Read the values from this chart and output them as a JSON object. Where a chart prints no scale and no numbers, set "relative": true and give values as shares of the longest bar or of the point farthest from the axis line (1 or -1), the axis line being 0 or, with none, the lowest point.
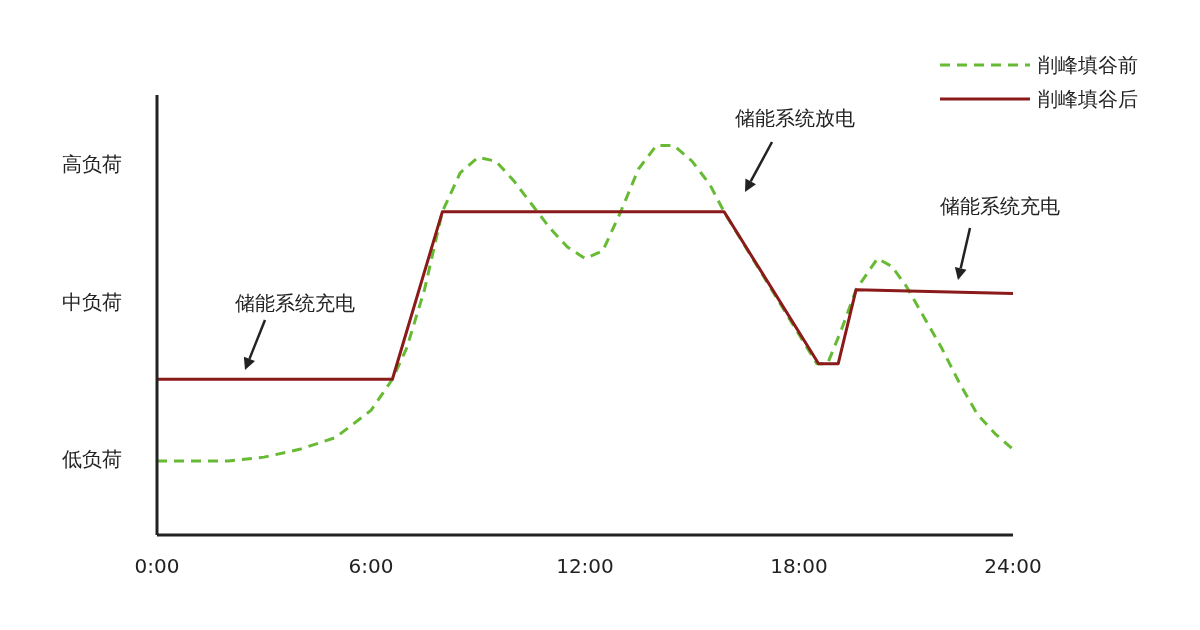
{
  "chart_data": {
    "type": "line",
    "relative": true,
    "xlim": [
      0,
      24
    ],
    "xticks": [
      {
        "value": 0,
        "label": "0:00"
      },
      {
        "value": 6,
        "label": "6:00"
      },
      {
        "value": 12,
        "label": "12:00"
      },
      {
        "value": 18,
        "label": "18:00"
      },
      {
        "value": 24,
        "label": "24:00"
      }
    ],
    "grid": false,
    "legend": "top right",
    "marker": "none",
    "series": [
      {
        "name": "削峰填谷前",
        "color": "#66bb33",
        "line_style": "dashed",
        "x": [
          0,
          1,
          2,
          3,
          4,
          5,
          6,
          6.6,
          7,
          7.5,
          8,
          8.5,
          9,
          9.5,
          10,
          10.5,
          11,
          11.5,
          12,
          12.5,
          13,
          13.5,
          14,
          14.5,
          15,
          15.5,
          15.9,
          16.5,
          17.5,
          18.5,
          18.8,
          19.2,
          19.6,
          20.2,
          20.6,
          21,
          21.5,
          22,
          22.5,
          23,
          23.5,
          24
        ],
        "values": [
          0.19,
          0.19,
          0.19,
          0.2,
          0.22,
          0.25,
          0.32,
          0.4,
          0.48,
          0.63,
          0.83,
          0.93,
          0.97,
          0.96,
          0.91,
          0.85,
          0.79,
          0.74,
          0.71,
          0.73,
          0.83,
          0.94,
          1.0,
          1.0,
          0.96,
          0.9,
          0.83,
          0.74,
          0.59,
          0.44,
          0.44,
          0.53,
          0.63,
          0.71,
          0.69,
          0.64,
          0.56,
          0.48,
          0.39,
          0.31,
          0.26,
          0.22
        ]
      },
      {
        "name": "削峰填谷后",
        "color": "#8b1a1a",
        "line_style": "solid",
        "x": [
          0,
          6.6,
          8,
          15.9,
          18.55,
          19.1,
          19.6,
          24
        ],
        "values": [
          0.4,
          0.4,
          0.83,
          0.83,
          0.44,
          0.44,
          0.63,
          0.62
        ]
      }
    ],
    "annotations": [
      "储能系统充电",
      "储能系统放电",
      "储能系统充电",
      "高负荷",
      "中负荷",
      "低负荷"
    ]
  }
}
